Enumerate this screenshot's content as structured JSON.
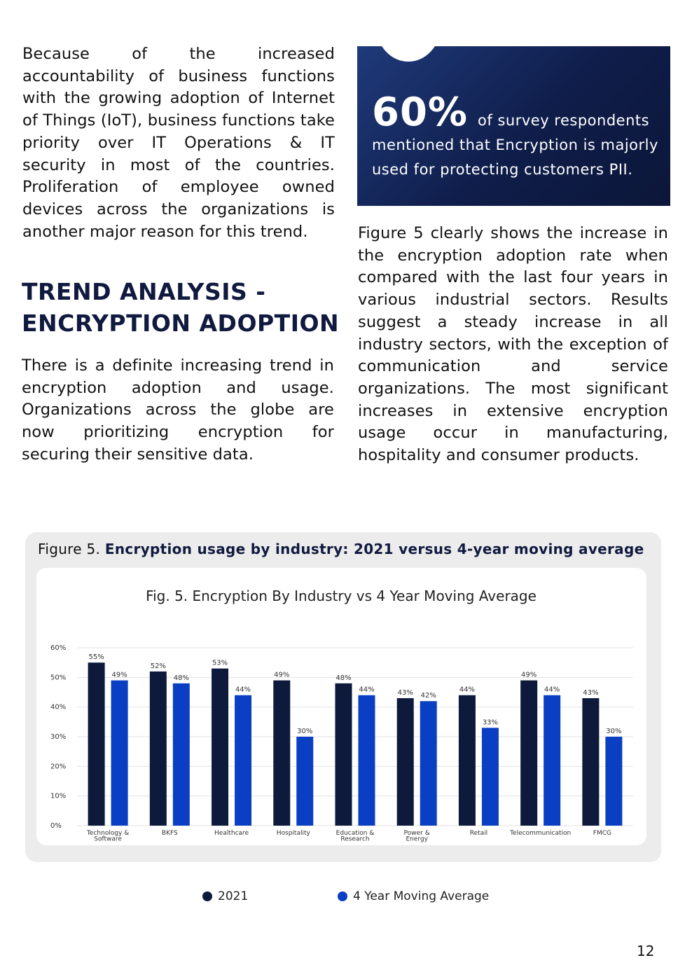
{
  "left_column": {
    "paragraph_1": "Because of the increased accountability of business functions with the growing adoption of Internet of Things (IoT), business functions take priority over IT Operations & IT security in most of the countries. Proliferation of employee owned devices across the organizations is another major reason for this trend.",
    "heading_line_1": "TREND ANALYSIS -",
    "heading_line_2": "ENCRYPTION ADOPTION",
    "paragraph_2": "There is a definite increasing trend in encryption adoption and usage. Organizations across the globe are now prioritizing encryption for securing their sensitive data."
  },
  "callout": {
    "stat": "60%",
    "stat_rest": "of survey respondents",
    "text": "mentioned that Encryption is majorly used for protecting customers PII."
  },
  "right_column": {
    "paragraph": "Figure 5 clearly shows the increase in the encryption adoption rate when compared with the last four years in various industrial sectors. Results suggest a steady increase in all industry sectors, with the exception of communication and service organizations. The most significant increases in extensive encryption usage occur in manufacturing, hospitality and consumer products."
  },
  "figure": {
    "caption_prefix": "Figure 5.",
    "caption_bold": "Encryption usage by industry: 2021 versus 4-year moving average"
  },
  "legend": {
    "item_1": "2021",
    "item_2": "4 Year Moving Average"
  },
  "page_number": "12",
  "colors": {
    "series_2021": "#0d1a3b",
    "series_avg": "#0a3fc4",
    "grid": "#e2e2e2"
  },
  "chart_data": {
    "type": "bar",
    "title": "Fig. 5. Encryption By Industry vs 4 Year Moving Average",
    "categories": [
      [
        "Technology &",
        "Software"
      ],
      [
        "BKFS"
      ],
      [
        "Healthcare"
      ],
      [
        "Hospitality"
      ],
      [
        "Education &",
        "Research"
      ],
      [
        "Power &",
        "Energy"
      ],
      [
        "Retail"
      ],
      [
        "Telecommunication"
      ],
      [
        "FMCG"
      ]
    ],
    "series": [
      {
        "name": "2021",
        "values": [
          55,
          52,
          53,
          49,
          48,
          43,
          44,
          49,
          43
        ]
      },
      {
        "name": "4 Year Moving Average",
        "values": [
          49,
          48,
          44,
          30,
          44,
          42,
          33,
          44,
          30
        ]
      }
    ],
    "ylim": [
      0,
      60
    ],
    "yticks": [
      "0%",
      "10%",
      "20%",
      "30%",
      "40%",
      "50%",
      "60%"
    ],
    "value_suffix": "%",
    "grid": true,
    "legend": "bottom"
  }
}
